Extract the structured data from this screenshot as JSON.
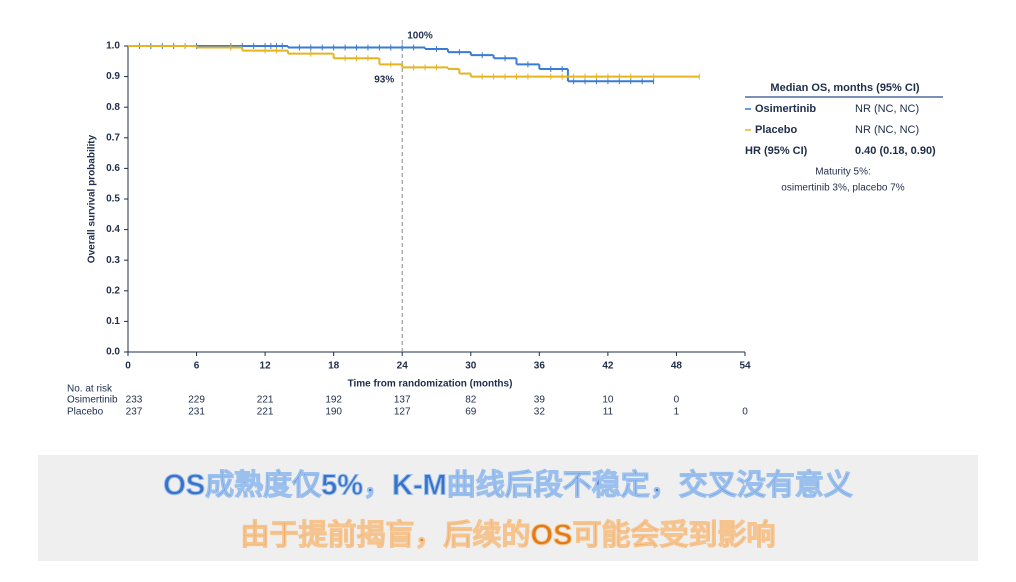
{
  "chart_data": {
    "type": "step",
    "y_label": "Overall survival probability",
    "x_label": "Time from randomization (months)",
    "xlim": [
      0,
      54
    ],
    "xticks": [
      0,
      6,
      12,
      18,
      24,
      30,
      36,
      42,
      48,
      54
    ],
    "ylim": [
      0,
      1
    ],
    "yticks": [
      {
        "value": 0,
        "label": "0.0"
      },
      0.1,
      0.2,
      0.3,
      0.4,
      0.5,
      0.6,
      0.7,
      0.8,
      0.9,
      {
        "value": 1,
        "label": "1.0"
      }
    ],
    "reference_x": 24,
    "annotations": [
      {
        "text": "100%",
        "color": "#3a7bd5"
      },
      {
        "text": "93%",
        "color": "#e0b020"
      }
    ],
    "series": [
      {
        "name": "Osimertinib",
        "color": "#3a7bd5",
        "x": [
          0,
          14,
          26,
          28,
          30,
          32,
          34,
          36,
          38.5,
          46
        ],
        "values": [
          1.0,
          0.995,
          0.99,
          0.98,
          0.97,
          0.96,
          0.94,
          0.925,
          0.885,
          0.885
        ],
        "censored": [
          1,
          2,
          3,
          4,
          5,
          6,
          9,
          10,
          11,
          12,
          12.5,
          13,
          13.5,
          15,
          16,
          17,
          18,
          19,
          20,
          21,
          22,
          23,
          24,
          25,
          27,
          29,
          31,
          33,
          35,
          37,
          38,
          39,
          40,
          41,
          42,
          43,
          44,
          45,
          46
        ]
      },
      {
        "name": "Placebo",
        "color": "#e6b422",
        "x": [
          0,
          6,
          10,
          14,
          18,
          22,
          24,
          28,
          29,
          30,
          50
        ],
        "values": [
          1.0,
          0.995,
          0.985,
          0.975,
          0.96,
          0.94,
          0.93,
          0.925,
          0.91,
          0.9,
          0.9
        ],
        "censored": [
          5,
          9,
          12,
          13,
          16,
          19,
          20,
          21,
          23,
          25,
          26,
          27,
          31,
          32,
          33,
          34,
          35,
          37,
          38,
          39,
          40,
          41,
          42,
          43,
          44,
          46,
          50
        ]
      }
    ],
    "risk_table": {
      "title": "No. at risk",
      "rows": [
        {
          "name": "Osimertinib",
          "values": [
            233,
            229,
            221,
            192,
            137,
            82,
            39,
            10,
            0
          ]
        },
        {
          "name": "Placebo",
          "values": [
            237,
            231,
            221,
            190,
            127,
            69,
            32,
            11,
            1,
            0
          ]
        }
      ]
    },
    "legend_box": {
      "title": "Median OS, months (95% CI)",
      "rows": [
        [
          "Osimertinib",
          "NR (NC, NC)"
        ],
        [
          "Placebo",
          "NR (NC, NC)"
        ],
        [
          "HR (95% CI)",
          "0.40 (0.18, 0.90)"
        ]
      ],
      "note": [
        "Maturity 5%:",
        "osimertinib 3%, placebo 7%"
      ]
    }
  },
  "banner": {
    "line1": "OS成熟度仅5%，K-M曲线后段不稳定，交叉没有意义",
    "line2": "由于提前揭盲，后续的OS可能会受到影响"
  }
}
